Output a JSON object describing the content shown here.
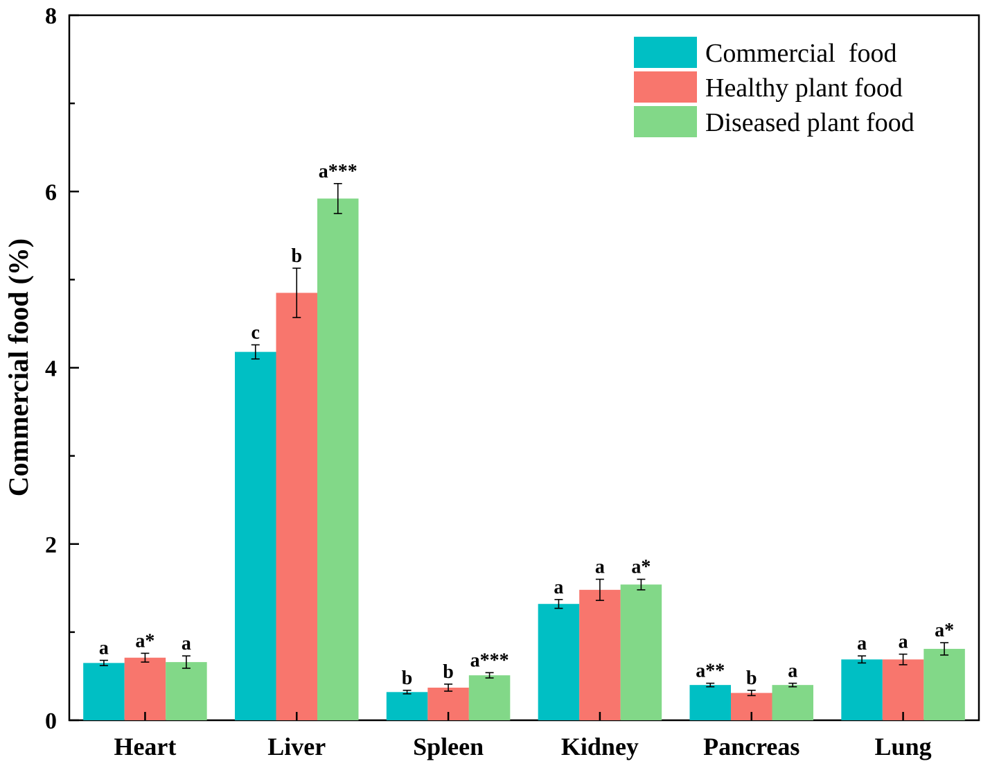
{
  "chart_data": {
    "type": "bar",
    "title": "",
    "xlabel": "",
    "ylabel": "Commercial  food (%)",
    "ylim": [
      0,
      8
    ],
    "yticks": [
      0,
      2,
      4,
      6,
      8
    ],
    "categories": [
      "Heart",
      "Liver",
      "Spleen",
      "Kidney",
      "Pancreas",
      "Lung"
    ],
    "legend_position": "top-right",
    "series": [
      {
        "name": "Commercial  food",
        "color": "#00BFC4",
        "values": [
          0.65,
          4.18,
          0.32,
          1.32,
          0.4,
          0.69
        ],
        "errors": [
          0.03,
          0.08,
          0.02,
          0.05,
          0.02,
          0.04
        ],
        "labels": [
          "a",
          "c",
          "b",
          "a",
          "a**",
          "a"
        ]
      },
      {
        "name": "Healthy plant food",
        "color": "#F8766D",
        "values": [
          0.71,
          4.85,
          0.37,
          1.48,
          0.31,
          0.69
        ],
        "errors": [
          0.05,
          0.28,
          0.04,
          0.12,
          0.03,
          0.06
        ],
        "labels": [
          "a*",
          "b",
          "b",
          "a",
          "b",
          "a"
        ]
      },
      {
        "name": "Diseased plant food",
        "color": "#82D888",
        "values": [
          0.66,
          5.92,
          0.51,
          1.54,
          0.4,
          0.81
        ],
        "errors": [
          0.07,
          0.17,
          0.03,
          0.06,
          0.02,
          0.07
        ],
        "labels": [
          "a",
          "a***",
          "a***",
          "a*",
          "a",
          "a*"
        ]
      }
    ]
  }
}
